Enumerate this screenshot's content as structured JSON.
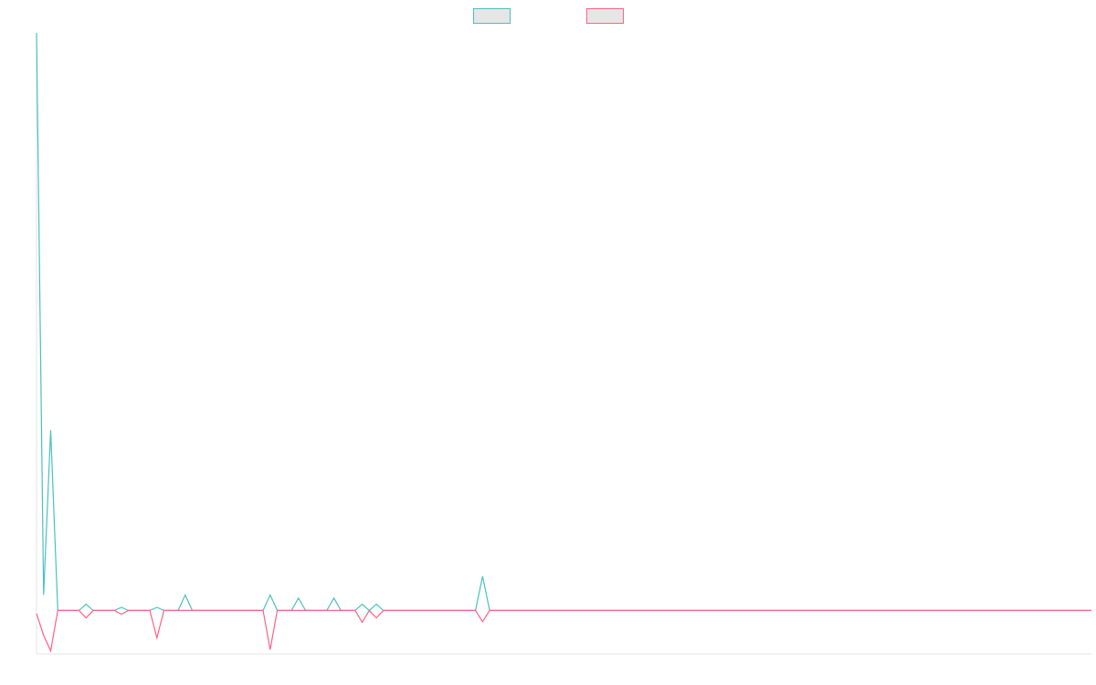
{
  "chart_data": {
    "type": "line",
    "title": "",
    "xlabel": "",
    "ylabel": "",
    "legend_position": "top-center",
    "grid": false,
    "ylim": [
      -7,
      93
    ],
    "point_count": 150,
    "series": [
      {
        "color": "#4bc0c0",
        "legend_fill": "#e6e6e6",
        "points": [
          [
            0,
            93
          ],
          [
            1,
            2.5
          ],
          [
            2,
            29
          ],
          [
            3,
            0
          ],
          [
            7,
            1
          ],
          [
            12,
            0.5
          ],
          [
            17,
            0.5
          ],
          [
            21,
            2.5
          ],
          [
            33,
            2.5
          ],
          [
            37,
            2
          ],
          [
            42,
            2
          ],
          [
            46,
            1
          ],
          [
            48,
            1
          ],
          [
            63,
            5.5
          ]
        ]
      },
      {
        "color": "#ff6384",
        "legend_fill": "#e6e6e6",
        "points": [
          [
            0,
            -0.5
          ],
          [
            1,
            -4
          ],
          [
            2,
            -6.5
          ],
          [
            3,
            0
          ],
          [
            7,
            -1.2
          ],
          [
            12,
            -0.6
          ],
          [
            17,
            -4.4
          ],
          [
            33,
            -6.3
          ],
          [
            46,
            -1.9
          ],
          [
            48,
            -1.2
          ],
          [
            63,
            -1.8
          ]
        ]
      }
    ]
  }
}
